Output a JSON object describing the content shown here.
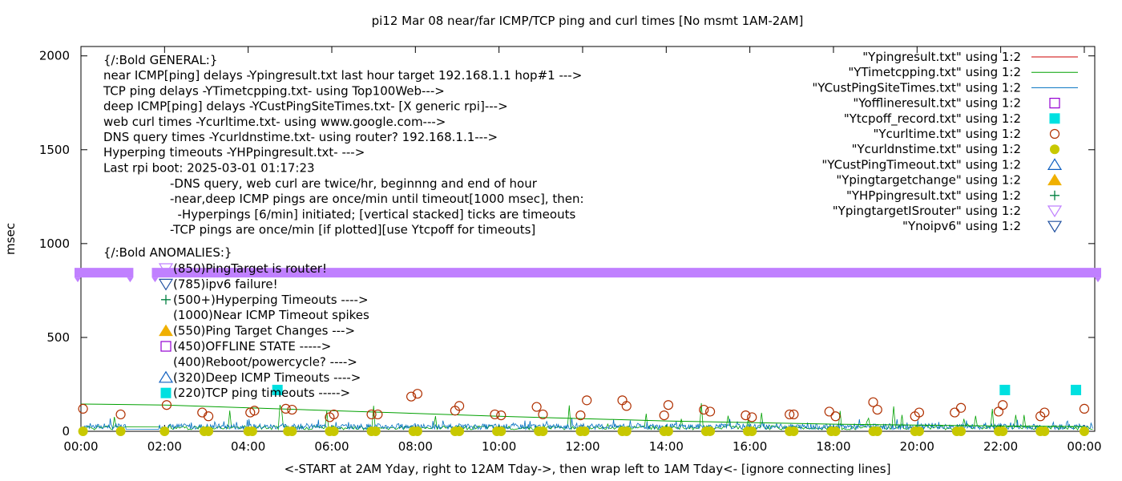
{
  "chart_data": {
    "type": "line",
    "title": "pi12 Mar 08  near/far ICMP/TCP ping and curl times [No msmt 1AM-2AM]",
    "xlabel": "<-START at 2AM Yday, right to 12AM Tday->, then wrap left to 1AM Tday<- [ignore connecting lines]",
    "ylabel": "msec",
    "xlim_hours": [
      0,
      24.25
    ],
    "ylim": [
      0,
      2050
    ],
    "x_ticks": [
      "00:00",
      "02:00",
      "04:00",
      "06:00",
      "08:00",
      "10:00",
      "12:00",
      "14:00",
      "16:00",
      "18:00",
      "20:00",
      "22:00",
      "00:00"
    ],
    "x_tick_hours": [
      0,
      2,
      4,
      6,
      8,
      10,
      12,
      14,
      16,
      18,
      20,
      22,
      24
    ],
    "y_ticks": [
      0,
      500,
      1000,
      1500,
      2000
    ],
    "colors": {
      "Ypingresult": "#cc0000",
      "YTimetcpping": "#00a000",
      "YCustPingSiteTimes": "#0070c0",
      "Yofflineresult": "#9400d3",
      "Ytcpoff_record": "#00e0e0",
      "Ycurltime": "#b03000",
      "Ycurldnstime": "#c8c800",
      "YCustPingTimeout": "#1060c0",
      "Ypingtargetchange": "#f0b000",
      "YHPpingresult": "#008040",
      "YpingtargetISrouter": "#c080ff",
      "Ynoipv6": "#2050a0"
    },
    "legend_position": "top-right",
    "legend": [
      {
        "label": "\"Ypingresult.txt\" using 1:2",
        "symbol": "line",
        "color": "#cc0000"
      },
      {
        "label": "\"YTimetcpping.txt\" using 1:2",
        "symbol": "line",
        "color": "#00a000"
      },
      {
        "label": "\"YCustPingSiteTimes.txt\" using 1:2",
        "symbol": "line",
        "color": "#0070c0"
      },
      {
        "label": "\"Yofflineresult.txt\" using 1:2",
        "symbol": "square-open",
        "color": "#9400d3"
      },
      {
        "label": "\"Ytcpoff_record.txt\" using 1:2",
        "symbol": "square-filled",
        "color": "#00e0e0"
      },
      {
        "label": "\"Ycurltime.txt\" using 1:2",
        "symbol": "circle-open",
        "color": "#b03000"
      },
      {
        "label": "\"Ycurldnstime.txt\" using 1:2",
        "symbol": "circle-filled",
        "color": "#c8c800"
      },
      {
        "label": "\"YCustPingTimeout.txt\" using 1:2",
        "symbol": "triangle-open",
        "color": "#1060c0"
      },
      {
        "label": "\"Ypingtargetchange\" using 1:2",
        "symbol": "triangle-filled",
        "color": "#f0b000"
      },
      {
        "label": "\"YHPpingresult.txt\" using 1:2",
        "symbol": "plus",
        "color": "#008040"
      },
      {
        "label": "\"YpingtargetISrouter\" using 1:2",
        "symbol": "triangle-down-open",
        "color": "#c080ff"
      },
      {
        "label": "\"Ynoipv6\" using 1:2",
        "symbol": "triangle-down-open",
        "color": "#2050a0"
      }
    ],
    "annotations_general": [
      "{/:Bold GENERAL:}",
      "near ICMP[ping] delays -Ypingresult.txt last hour target 192.168.1.1 hop#1 --->",
      "TCP ping delays -YTimetcpping.txt- using Top100Web--->",
      "deep ICMP[ping] delays -YCustPingSiteTimes.txt- [X generic rpi]--->",
      "web curl times -Ycurltime.txt- using www.google.com--->",
      "DNS query times -Ycurldnstime.txt- using router? 192.168.1.1--->",
      "Hyperping timeouts -YHPpingresult.txt- --->",
      "Last rpi boot: 2025-03-01 01:17:23"
    ],
    "annotations_notes": [
      "-DNS query, web curl are twice/hr, beginnng and end of hour",
      "-near,deep ICMP pings are once/min until timeout[1000 msec], then:",
      "  -Hyperpings [6/min] initiated; [vertical stacked] ticks are timeouts",
      "-TCP pings are once/min [if plotted][use Ytcpoff for timeouts]"
    ],
    "anomalies_title": "{/:Bold ANOMALIES:}",
    "anomalies": [
      {
        "text": "(850)PingTarget is router!",
        "symbol": "triangle-down-open",
        "color": "#c080ff"
      },
      {
        "text": "(785)ipv6 failure!",
        "symbol": "triangle-down-open",
        "color": "#2050a0"
      },
      {
        "text": "(500+)Hyperping Timeouts ---->",
        "symbol": "plus",
        "color": "#008040"
      },
      {
        "text": "(1000)Near ICMP Timeout spikes",
        "symbol": "none",
        "color": "#cc0000"
      },
      {
        "text": "(550)Ping Target Changes --->",
        "symbol": "triangle-filled",
        "color": "#f0b000"
      },
      {
        "text": "(450)OFFLINE STATE ----->",
        "symbol": "square-open",
        "color": "#9400d3"
      },
      {
        "text": "(400)Reboot/powercycle? ---->",
        "symbol": "none",
        "color": "#000000"
      },
      {
        "text": "(320)Deep ICMP Timeouts ---->",
        "symbol": "triangle-open",
        "color": "#1060c0"
      },
      {
        "text": "(220)TCP ping timeouts ----->",
        "symbol": "square-filled",
        "color": "#00e0e0"
      }
    ],
    "series": {
      "YpingtargetISrouter_band": {
        "y": 845,
        "segments_hours": [
          [
            0,
            1.1
          ],
          [
            1.85,
            24.25
          ]
        ]
      },
      "YTimetcpping_trend": {
        "x_hours": [
          0,
          2,
          6,
          10,
          14,
          18,
          22,
          24
        ],
        "y": [
          145,
          140,
          110,
          80,
          55,
          38,
          28,
          25
        ]
      },
      "Ytcpoff_record": {
        "x_hours": [
          4.7,
          22.1,
          23.8
        ],
        "y": [
          220,
          220,
          220
        ]
      },
      "Ycurltime": {
        "x_hours": [
          0.05,
          0.95,
          2.05,
          2.9,
          3.05,
          4.05,
          4.15,
          4.9,
          5.05,
          5.95,
          6.05,
          6.95,
          7.1,
          7.9,
          8.05,
          8.95,
          9.05,
          9.9,
          10.05,
          10.9,
          11.05,
          11.95,
          12.1,
          12.95,
          13.05,
          13.95,
          14.05,
          14.9,
          15.05,
          15.9,
          16.05,
          16.95,
          17.05,
          17.9,
          18.05,
          18.95,
          19.05,
          19.95,
          20.05,
          20.9,
          21.05,
          21.95,
          22.05,
          22.95,
          23.05,
          24.0
        ],
        "y": [
          120,
          90,
          140,
          100,
          80,
          100,
          110,
          120,
          115,
          75,
          90,
          90,
          90,
          185,
          200,
          110,
          135,
          90,
          85,
          130,
          90,
          85,
          165,
          165,
          135,
          85,
          140,
          115,
          105,
          85,
          75,
          90,
          90,
          105,
          80,
          155,
          115,
          80,
          100,
          100,
          125,
          105,
          140,
          80,
          100,
          120
        ]
      },
      "Ycurldnstime": {
        "x_hours": [
          0.05,
          0.95,
          2.0,
          2.95,
          3.05,
          4.0,
          4.1,
          4.95,
          5.05,
          5.95,
          6.05,
          6.95,
          7.05,
          7.95,
          8.05,
          8.95,
          9.05,
          9.95,
          10.05,
          10.95,
          11.05,
          11.95,
          12.05,
          12.95,
          13.05,
          13.95,
          14.05,
          14.95,
          15.05,
          15.95,
          16.05,
          16.95,
          17.05,
          17.95,
          18.05,
          18.95,
          19.05,
          19.95,
          20.05,
          20.95,
          21.05,
          21.95,
          22.05,
          22.95,
          23.05,
          24.0
        ],
        "y": [
          0,
          0,
          0,
          0,
          0,
          0,
          0,
          0,
          0,
          0,
          0,
          0,
          0,
          0,
          0,
          0,
          0,
          0,
          0,
          0,
          0,
          0,
          0,
          0,
          0,
          0,
          0,
          0,
          0,
          0,
          0,
          0,
          0,
          0,
          0,
          0,
          0,
          0,
          0,
          0,
          0,
          0,
          0,
          0,
          0,
          0
        ]
      }
    }
  }
}
